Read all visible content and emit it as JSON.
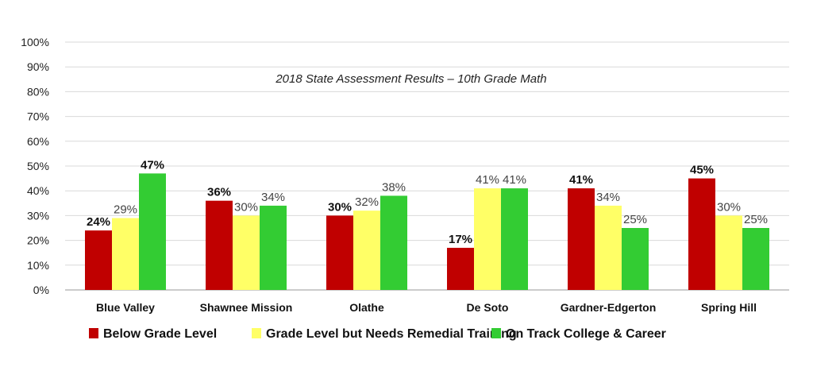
{
  "chart_data": {
    "type": "bar",
    "title": "2018 State Assessment Results – 10th Grade Math",
    "categories": [
      "Blue Valley",
      "Shawnee Mission",
      "Olathe",
      "De Soto",
      "Gardner-Edgerton",
      "Spring Hill"
    ],
    "series": [
      {
        "name": "Below Grade Level",
        "color": "#c00000",
        "values": [
          24,
          36,
          30,
          17,
          41,
          45
        ],
        "labels": [
          "24%",
          "36%",
          "30%",
          "17%",
          "41%",
          "45%"
        ]
      },
      {
        "name": "Grade Level but Needs Remedial Training",
        "color": "#ffff66",
        "values": [
          29,
          30,
          32,
          41,
          34,
          30
        ],
        "labels": [
          "29%",
          "30%",
          "32%",
          "41%",
          "34%",
          "30%"
        ]
      },
      {
        "name": "On Track College & Career",
        "color": "#33cc33",
        "values": [
          47,
          34,
          38,
          41,
          25,
          25
        ],
        "labels": [
          "47%",
          "34%",
          "38%",
          "41%",
          "25%",
          "25%"
        ]
      }
    ],
    "yticks": [
      "0%",
      "10%",
      "20%",
      "30%",
      "40%",
      "50%",
      "60%",
      "70%",
      "80%",
      "90%",
      "100%"
    ],
    "ylim": [
      0,
      100
    ],
    "grid": true,
    "legend_position": "bottom"
  }
}
